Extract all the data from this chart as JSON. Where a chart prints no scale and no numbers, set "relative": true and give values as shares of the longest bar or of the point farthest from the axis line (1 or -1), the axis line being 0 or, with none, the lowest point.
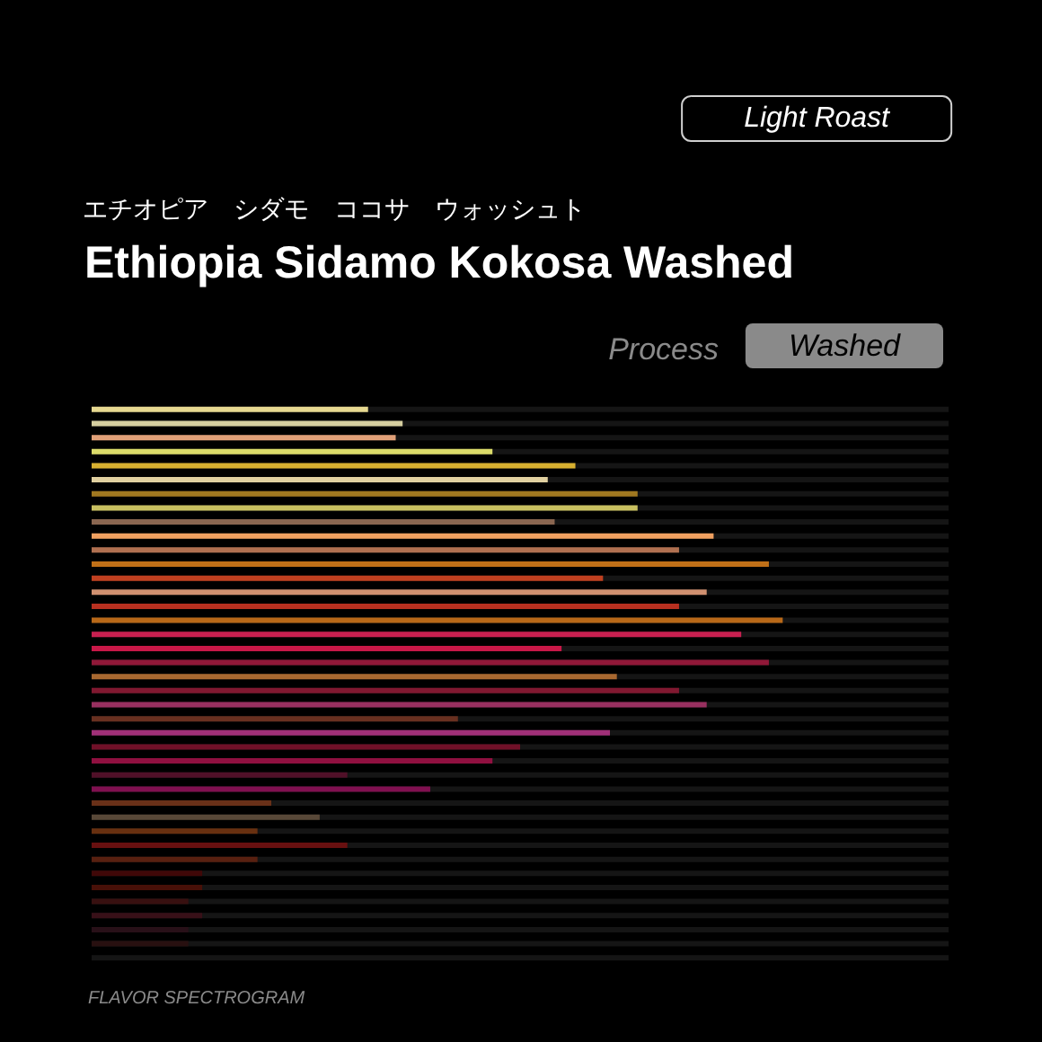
{
  "chart_data": {
    "type": "bar",
    "orientation": "horizontal",
    "relative": true,
    "title": "Ethiopia Sidamo Kokosa Washed",
    "subtitle": "エチオピア　シダモ　ココサ　ウォッシュト",
    "annotations": [
      "Light Roast",
      "Process",
      "Washed",
      "FLAVOR SPECTROGRAM"
    ],
    "categories": [
      null,
      null,
      null,
      null,
      null,
      null,
      null,
      null,
      null,
      null,
      null,
      null,
      null,
      null,
      null,
      null,
      null,
      null,
      null,
      null,
      null,
      null,
      null,
      null,
      null,
      null,
      null,
      null,
      null,
      null,
      null,
      null,
      null,
      null,
      null,
      null,
      null,
      null,
      null,
      null
    ],
    "values": [
      0.4,
      0.45,
      0.44,
      0.58,
      0.7,
      0.66,
      0.79,
      0.79,
      0.67,
      0.9,
      0.85,
      0.98,
      0.74,
      0.89,
      0.85,
      1,
      0.94,
      0.68,
      0.98,
      0.76,
      0.85,
      0.89,
      0.53,
      0.75,
      0.62,
      0.58,
      0.37,
      0.49,
      0.26,
      0.33,
      0.24,
      0.37,
      0.24,
      0.16,
      0.16,
      0.14,
      0.16,
      0.14,
      0.14,
      0
    ],
    "colors": [
      "#e6d890",
      "#d6cfa0",
      "#e0a078",
      "#dcdc6a",
      "#d8b030",
      "#e0d0a0",
      "#a07820",
      "#c8c060",
      "#8a6650",
      "#f0a060",
      "#b07050",
      "#c07018",
      "#c04020",
      "#d09070",
      "#b83020",
      "#b86818",
      "#c82050",
      "#c81848",
      "#901838",
      "#a86830",
      "#801830",
      "#983060",
      "#683020",
      "#a03078",
      "#701028",
      "#901040",
      "#501028",
      "#801050",
      "#683018",
      "#584838",
      "#683010",
      "#681010",
      "#582010",
      "#400808",
      "#481008",
      "#381010",
      "#381018",
      "#281018",
      "#281010",
      "#181818"
    ]
  }
}
